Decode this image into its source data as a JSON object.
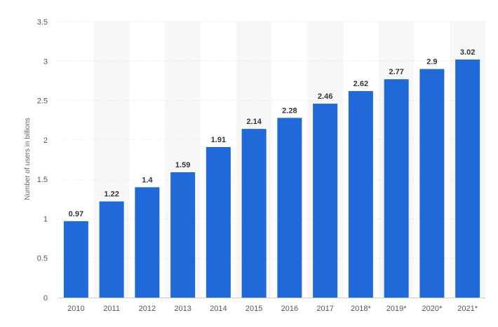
{
  "chart_data": {
    "type": "bar",
    "title": "",
    "xlabel": "",
    "ylabel": "Number of users in billions",
    "categories": [
      "2010",
      "2011",
      "2012",
      "2013",
      "2014",
      "2015",
      "2016",
      "2017",
      "2018*",
      "2019*",
      "2020*",
      "2021*"
    ],
    "values": [
      0.97,
      1.22,
      1.4,
      1.59,
      1.91,
      2.14,
      2.28,
      2.46,
      2.62,
      2.77,
      2.9,
      3.02
    ],
    "value_labels": [
      "0.97",
      "1.22",
      "1.4",
      "1.59",
      "1.91",
      "2.14",
      "2.28",
      "2.46",
      "2.62",
      "2.77",
      "2.9",
      "3.02"
    ],
    "y_ticks": [
      0,
      0.5,
      1,
      1.5,
      2,
      2.5,
      3,
      3.5
    ],
    "y_tick_labels": [
      "0",
      "0.5",
      "1",
      "1.5",
      "2",
      "2.5",
      "3",
      "3.5"
    ],
    "ylim": [
      0,
      3.5
    ],
    "grid": true,
    "legend": "none",
    "colors": {
      "bar": "#2069d8",
      "band": "#f7f7f7",
      "grid": "#e3e3e3",
      "baseline": "#cccccc"
    }
  }
}
